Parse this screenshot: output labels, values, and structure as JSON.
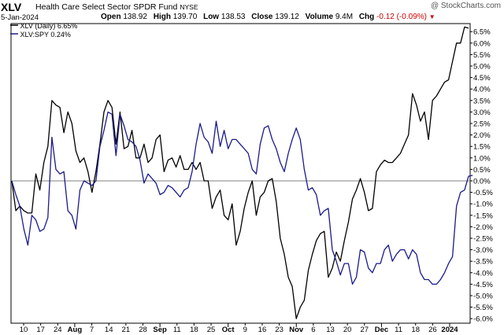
{
  "header": {
    "ticker": "XLV",
    "fund_name": "Health Care Select Sector SPDR Fund",
    "exchange": "NYSE",
    "watermark": "@ StockCharts.com",
    "date": "5-Jan-2024",
    "open_label": "Open",
    "open_value": "138.92",
    "high_label": "High",
    "high_value": "139.70",
    "low_label": "Low",
    "low_value": "138.53",
    "close_label": "Close",
    "close_value": "139.12",
    "volume_label": "Volume",
    "volume_value": "9.4M",
    "chg_label": "Chg",
    "chg_value": "-0.12 (-0.09%)",
    "chg_icon": "down-triangle-icon"
  },
  "legend": [
    {
      "label": "XLV (Daily) 6.65%",
      "color": "#000000"
    },
    {
      "label": "XLV:SPY 0.24%",
      "color": "#1a1a8c"
    }
  ],
  "chart_data": {
    "type": "line",
    "yticks": [
      "6.5%",
      "6.0%",
      "5.5%",
      "5.0%",
      "4.5%",
      "4.0%",
      "3.5%",
      "3.0%",
      "2.5%",
      "2.0%",
      "1.5%",
      "1.0%",
      "0.5%",
      "0.0%",
      "-0.5%",
      "-1.0%",
      "-1.5%",
      "-2.0%",
      "-2.5%",
      "-3.0%",
      "-3.5%",
      "-4.0%",
      "-4.5%",
      "-5.0%",
      "-5.5%",
      "-6.0%"
    ],
    "ylim": [
      -6.2,
      6.85
    ],
    "xticks": [
      "10",
      "17",
      "24",
      "Aug",
      "7",
      "14",
      "21",
      "28",
      "Sep",
      "11",
      "18",
      "25",
      "Oct",
      "9",
      "16",
      "23",
      "Nov",
      "6",
      "13",
      "20",
      "27",
      "Dec",
      "11",
      "18",
      "26",
      "2024"
    ],
    "x_month_ticks": [
      "Aug",
      "Sep",
      "Oct",
      "Nov",
      "Dec",
      "2024"
    ],
    "grid": false,
    "series": [
      {
        "name": "XLV (Daily) 6.65%",
        "color": "#000000",
        "values": [
          0.0,
          -1.3,
          -1.1,
          -1.3,
          -1.4,
          -1.4,
          0.3,
          -0.4,
          0.8,
          1.5,
          3.5,
          3.3,
          3.2,
          2.1,
          3.0,
          2.5,
          1.3,
          0.8,
          1.0,
          0.4,
          -0.5,
          0.4,
          1.6,
          3.0,
          3.5,
          3.2,
          1.6,
          3.0,
          1.4,
          1.5,
          2.2,
          1.0,
          1.0,
          1.6,
          0.8,
          1.0,
          1.8,
          2.0,
          0.4,
          0.9,
          1.0,
          0.6,
          1.1,
          0.5,
          0.5,
          0.8,
          0.5,
          0.8,
          0.0,
          0.0,
          -1.2,
          -0.7,
          -0.4,
          -1.5,
          -1.7,
          -1.0,
          -2.8,
          -2.2,
          -1.2,
          -0.5,
          0.0,
          -1.5,
          -0.7,
          -0.5,
          0.0,
          0.1,
          -0.9,
          -2.5,
          -3.2,
          -4.2,
          -4.6,
          -6.0,
          -5.5,
          -5.2,
          -3.9,
          -3.2,
          -2.6,
          -2.3,
          -2.2,
          -4.2,
          -3.8,
          -3.1,
          -3.5,
          -2.6,
          -1.8,
          -0.8,
          -0.4,
          0.1,
          -0.5,
          -1.3,
          -1.2,
          0.4,
          0.7,
          0.9,
          0.8,
          0.8,
          1.0,
          1.2,
          1.6,
          2.0,
          3.8,
          3.3,
          2.6,
          3.0,
          1.8,
          3.5,
          3.7,
          4.0,
          4.3,
          4.4,
          5.2,
          6.0,
          6.0,
          6.7,
          6.65
        ]
      },
      {
        "name": "XLV:SPY 0.24%",
        "color": "#1a1a8c",
        "values": [
          0.0,
          -0.6,
          -1.1,
          -2.1,
          -2.8,
          -1.5,
          -1.7,
          -2.2,
          -2.1,
          -1.6,
          1.9,
          0.5,
          0.3,
          0.4,
          -1.3,
          -1.5,
          -2.1,
          -0.4,
          0.0,
          -0.1,
          -0.2,
          0.0,
          1.5,
          2.2,
          3.0,
          2.9,
          1.1,
          2.9,
          2.4,
          1.8,
          1.7,
          1.5,
          0.9,
          -0.1,
          0.3,
          0.1,
          -0.1,
          -0.6,
          -0.5,
          -0.2,
          -0.3,
          -0.5,
          -0.7,
          -0.4,
          -0.3,
          0.4,
          1.6,
          2.5,
          1.9,
          1.7,
          1.2,
          2.6,
          1.5,
          2.2,
          1.4,
          1.8,
          1.8,
          1.6,
          1.4,
          1.2,
          0.5,
          0.3,
          1.6,
          2.3,
          2.4,
          1.8,
          1.4,
          0.8,
          0.4,
          1.2,
          1.8,
          2.3,
          1.8,
          0.5,
          -0.4,
          -0.3,
          -0.6,
          -1.5,
          -1.3,
          -1.2,
          -3.0,
          -3.5,
          -4.1,
          -3.6,
          -3.6,
          -4.5,
          -4.2,
          -3.0,
          -3.1,
          -3.8,
          -4.0,
          -3.6,
          -3.6,
          -3.0,
          -2.8,
          -3.5,
          -3.2,
          -3.0,
          -3.0,
          -3.4,
          -3.0,
          -3.2,
          -4.0,
          -4.3,
          -4.3,
          -4.5,
          -4.5,
          -4.3,
          -4.0,
          -3.6,
          -3.3,
          -1.1,
          -0.5,
          -0.4,
          0.2,
          0.24
        ]
      }
    ]
  }
}
